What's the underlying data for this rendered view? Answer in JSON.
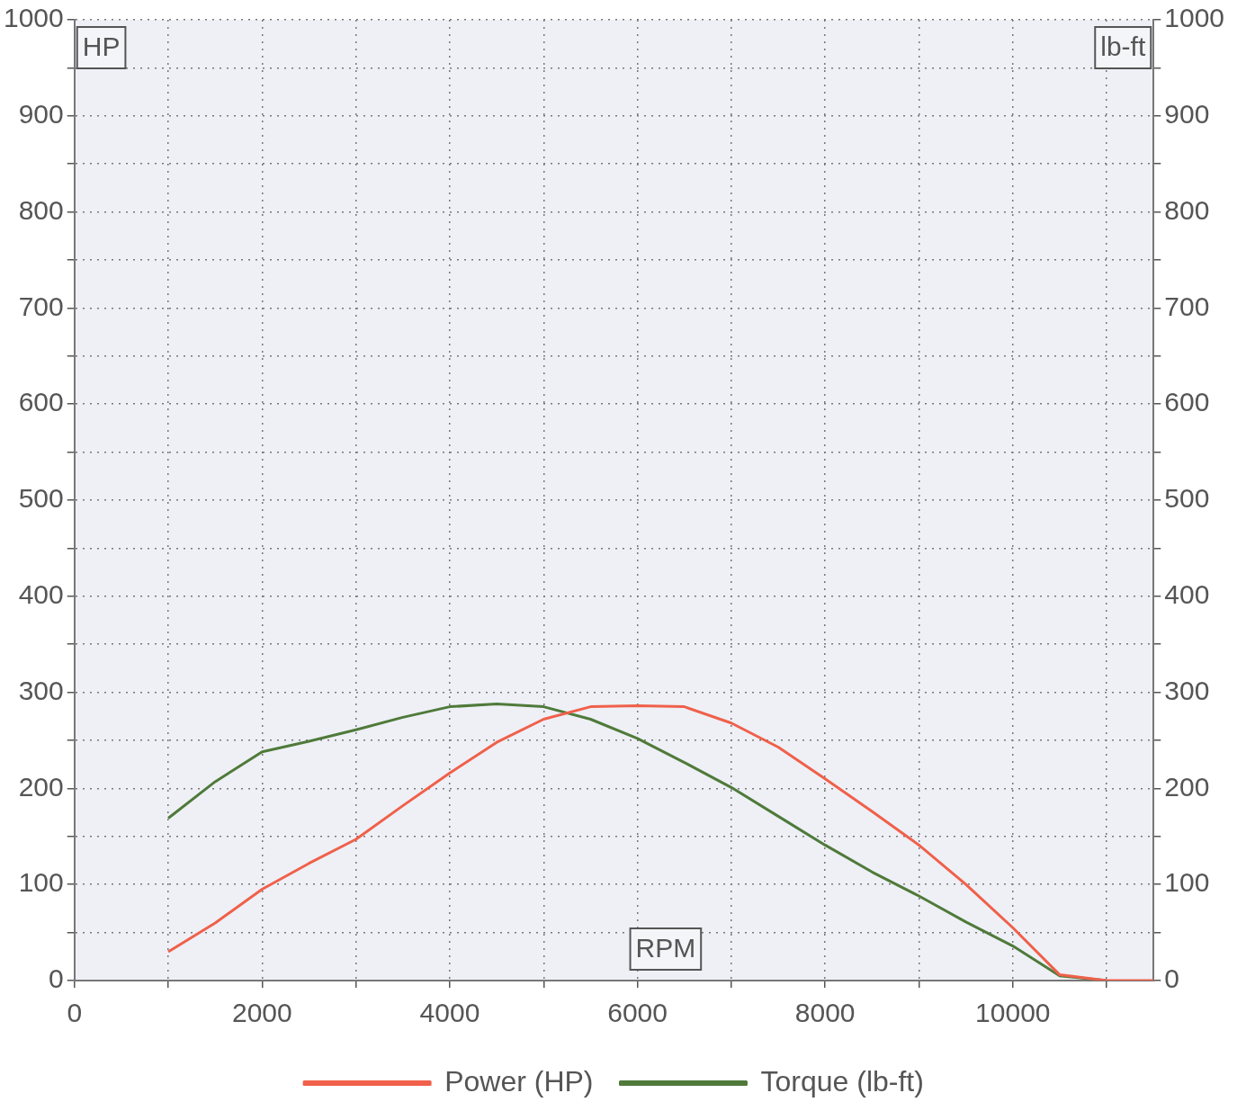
{
  "chart_data": {
    "type": "line",
    "xlabel": "RPM",
    "ylabel": "HP",
    "y2label": "lb-ft",
    "xlim": [
      0,
      11500
    ],
    "xticks": [
      0,
      {
        "value": 1000,
        "label": null
      },
      2000,
      {
        "value": 3000,
        "label": null
      },
      4000,
      {
        "value": 5000,
        "label": null
      },
      6000,
      {
        "value": 7000,
        "label": null
      },
      8000,
      {
        "value": 9000,
        "label": null
      },
      10000,
      {
        "value": 11000,
        "label": null
      }
    ],
    "ylim": [
      0,
      1000
    ],
    "yticks": [
      0,
      {
        "value": 50,
        "label": null
      },
      100,
      {
        "value": 150,
        "label": null
      },
      200,
      {
        "value": 250,
        "label": null
      },
      300,
      {
        "value": 350,
        "label": null
      },
      400,
      {
        "value": 450,
        "label": null
      },
      500,
      {
        "value": 550,
        "label": null
      },
      600,
      {
        "value": 650,
        "label": null
      },
      700,
      {
        "value": 750,
        "label": null
      },
      800,
      {
        "value": 850,
        "label": null
      },
      900,
      {
        "value": 950,
        "label": null
      },
      1000
    ],
    "y2lim": [
      0,
      1000
    ],
    "y2ticks": [
      0,
      {
        "value": 50,
        "label": null
      },
      100,
      {
        "value": 150,
        "label": null
      },
      200,
      {
        "value": 250,
        "label": null
      },
      300,
      {
        "value": 350,
        "label": null
      },
      400,
      {
        "value": 450,
        "label": null
      },
      500,
      {
        "value": 550,
        "label": null
      },
      600,
      {
        "value": 650,
        "label": null
      },
      700,
      {
        "value": 750,
        "label": null
      },
      800,
      {
        "value": 850,
        "label": null
      },
      900,
      {
        "value": 950,
        "label": null
      },
      1000
    ],
    "x": [
      1000,
      1500,
      2000,
      2500,
      3000,
      3500,
      4000,
      4500,
      5000,
      5500,
      6000,
      6500,
      7000,
      7500,
      8000,
      8500,
      9000,
      9500,
      10000,
      10500,
      11000,
      11500
    ],
    "series": [
      {
        "name": "Power (HP)",
        "color": "#f0604a",
        "values": [
          30,
          60,
          95,
          122,
          147,
          182,
          216,
          248,
          272,
          285,
          286,
          285,
          268,
          243,
          210,
          176,
          141,
          100,
          55,
          6,
          0,
          0
        ]
      },
      {
        "name": "Torque (lb-ft)",
        "color": "#4f7a3a",
        "axis": "y2",
        "values": [
          169,
          207,
          238,
          249,
          261,
          274,
          285,
          288,
          285,
          272,
          252,
          227,
          201,
          171,
          141,
          113,
          88,
          61,
          36,
          5,
          0,
          null
        ]
      }
    ],
    "grid": true,
    "legend": "bottom",
    "marker": "none",
    "line_style": "solid"
  }
}
